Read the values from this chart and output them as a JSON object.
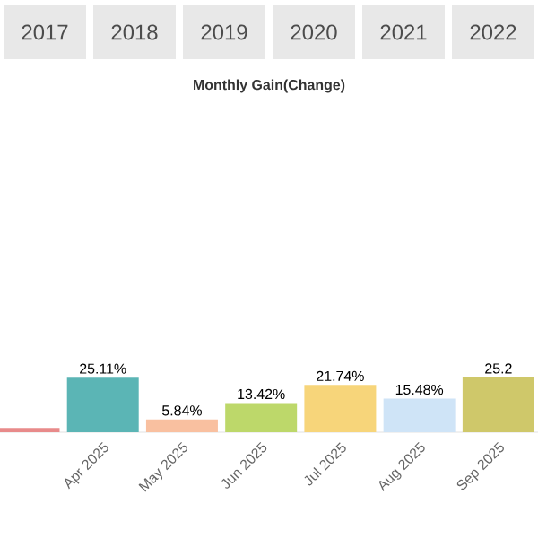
{
  "chart_data": {
    "type": "bar",
    "title": "Monthly Gain(Change)",
    "annotations": [
      "2017",
      "2018",
      "2019",
      "2020",
      "2021",
      "2022"
    ],
    "categories": [
      null,
      "Apr 2025",
      "May 2025",
      "Jun 2025",
      "Jul 2025",
      "Aug 2025",
      "Sep 2025"
    ],
    "values": [
      2,
      25.11,
      5.84,
      13.42,
      21.74,
      15.48,
      25.2
    ],
    "value_labels": [
      null,
      "25.11%",
      "5.84%",
      "13.42%",
      "21.74%",
      "15.48%",
      "25.2"
    ],
    "colors": [
      "#e88a8a",
      "#5bb5b5",
      "#f9c0a0",
      "#bdd86a",
      "#f7d57a",
      "#cfe4f7",
      "#cfc86a"
    ]
  }
}
